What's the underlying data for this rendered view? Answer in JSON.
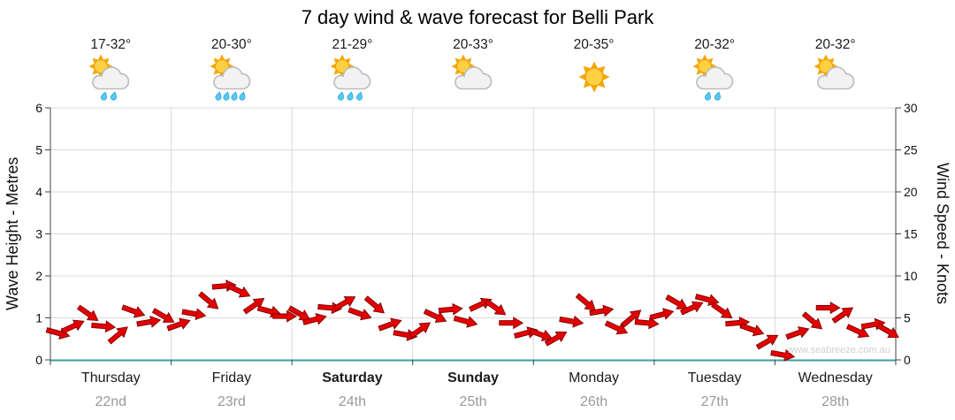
{
  "title": "7 day wind & wave forecast for Belli Park",
  "watermark": "www.seabreeze.com.au",
  "left_axis": {
    "label": "Wave Height - Metres",
    "min": 0,
    "max": 6,
    "step": 1
  },
  "right_axis": {
    "label": "Wind Speed - Knots",
    "min": 0,
    "max": 30,
    "step": 5
  },
  "days": [
    {
      "name": "Thursday",
      "date": "22nd",
      "temp": "17-32°",
      "icon": "sun-cloud-rain",
      "drops": 2,
      "weekend": false
    },
    {
      "name": "Friday",
      "date": "23rd",
      "temp": "20-30°",
      "icon": "sun-cloud-rain",
      "drops": 4,
      "weekend": false
    },
    {
      "name": "Saturday",
      "date": "24th",
      "temp": "21-29°",
      "icon": "sun-cloud-rain",
      "drops": 3,
      "weekend": true
    },
    {
      "name": "Sunday",
      "date": "25th",
      "temp": "20-33°",
      "icon": "sun-cloud",
      "drops": 0,
      "weekend": true
    },
    {
      "name": "Monday",
      "date": "26th",
      "temp": "20-35°",
      "icon": "sun",
      "drops": 0,
      "weekend": false
    },
    {
      "name": "Tuesday",
      "date": "27th",
      "temp": "20-32°",
      "icon": "sun-cloud-rain",
      "drops": 2,
      "weekend": false
    },
    {
      "name": "Wednesday",
      "date": "28th",
      "temp": "20-32°",
      "icon": "sun-cloud",
      "drops": 0,
      "weekend": false
    }
  ],
  "chart_data": {
    "type": "scatter",
    "marker": "wind-arrow",
    "title": "7 day wind & wave forecast for Belli Park",
    "categories": [
      "Thursday",
      "Friday",
      "Saturday",
      "Sunday",
      "Monday",
      "Tuesday",
      "Wednesday"
    ],
    "points_per_day": 8,
    "ylabel_left": "Wave Height - Metres",
    "ylabel_right": "Wind Speed - Knots",
    "ylim_left": [
      0,
      6
    ],
    "ylim_right": [
      0,
      30
    ],
    "grid": true,
    "series_name": "Wind speed (knots)",
    "wind_knots": [
      3.2,
      4.0,
      5.5,
      4.0,
      3.0,
      5.8,
      4.5,
      5.2,
      4.2,
      5.5,
      7.0,
      8.8,
      8.2,
      6.5,
      5.8,
      5.2,
      5.5,
      4.8,
      6.2,
      6.8,
      5.5,
      6.5,
      4.2,
      3.0,
      3.6,
      5.2,
      6.0,
      4.6,
      6.6,
      6.2,
      4.4,
      3.2,
      3.0,
      2.6,
      4.6,
      6.8,
      5.8,
      3.8,
      5.0,
      4.4,
      5.4,
      6.8,
      6.2,
      7.2,
      5.8,
      4.4,
      3.6,
      2.2,
      0.6,
      3.2,
      4.6,
      6.2,
      5.4,
      3.4,
      4.2,
      3.4
    ],
    "wind_dir_deg": [
      15,
      -25,
      35,
      5,
      -40,
      20,
      -10,
      30,
      -20,
      10,
      40,
      -5,
      25,
      -35,
      15,
      0,
      30,
      -15,
      5,
      -30,
      20,
      40,
      -20,
      10,
      -35,
      25,
      -5,
      15,
      -25,
      35,
      0,
      -15,
      20,
      -30,
      10,
      40,
      -10,
      25,
      -40,
      5,
      -15,
      30,
      -25,
      15,
      35,
      -5,
      20,
      -30,
      10,
      -20,
      40,
      0,
      -35,
      25,
      -10,
      30
    ],
    "colors": {
      "arrow": "#e30000",
      "arrow_outline": "#7e0000",
      "grid": "#d9d9d9",
      "axis": "#444444",
      "baseline": "#3d9e9e",
      "tick_text": "#111111",
      "watermark": "#cfcfcf"
    }
  }
}
